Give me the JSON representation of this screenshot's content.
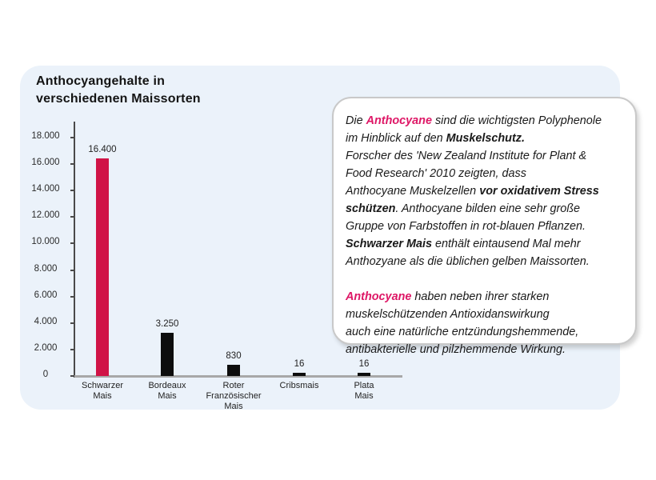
{
  "colors": {
    "page_bg": "#ffffff",
    "panel_bg": "#ebf2fa",
    "accent_pink": "#de1766",
    "bar_crimson": "#d01447",
    "bar_black": "#0d0d0d",
    "axis_line": "#4a4a4a",
    "baseline_gray": "#a8a8a8",
    "text_dark": "#1a1a1a",
    "infobox_border": "#c9c9c9"
  },
  "title": {
    "line1": "Anthocyangehalte in",
    "line2": "verschiedenen Maissorten"
  },
  "chart_data": {
    "type": "bar",
    "title": "Anthocyangehalte in verschiedenen Maissorten",
    "categories": [
      "Schwarzer Mais",
      "Bordeaux Mais",
      "Roter Französischer Mais",
      "Cribsmais",
      "Plata Mais"
    ],
    "category_lines": [
      [
        "Schwarzer",
        "Mais"
      ],
      [
        "Bordeaux",
        "Mais"
      ],
      [
        "Roter",
        "Französischer",
        "Mais"
      ],
      [
        "Cribsmais"
      ],
      [
        "Plata",
        "Mais"
      ]
    ],
    "values": [
      16400,
      3250,
      830,
      16,
      16
    ],
    "value_labels": [
      "16.400",
      "3.250",
      "830",
      "16",
      "16"
    ],
    "bar_colors": [
      "#d01447",
      "#0d0d0d",
      "#0d0d0d",
      "#0d0d0d",
      "#0d0d0d"
    ],
    "xlabel": "",
    "ylabel": "",
    "ylim": [
      0,
      18000
    ],
    "y_ticks": [
      18000,
      16000,
      14000,
      12000,
      10000,
      8000,
      6000,
      4000,
      2000,
      0
    ],
    "y_tick_labels": [
      "18.000",
      "16.000",
      "14.000",
      "12.000",
      "10.000",
      "8.000",
      "6.000",
      "4.000",
      "2.000",
      "0"
    ],
    "grid": false,
    "legend": false
  },
  "infobox": {
    "paragraphs": [
      [
        {
          "t": "Die ",
          "s": "n"
        },
        {
          "t": "Anthocyane",
          "s": "a"
        },
        {
          "t": " sind die wichtigsten Polyphenole",
          "s": "n"
        },
        {
          "br": true
        },
        {
          "t": "im Hinblick auf den ",
          "s": "n"
        },
        {
          "t": "Muskelschutz.",
          "s": "b"
        },
        {
          "br": true
        },
        {
          "t": "Forscher des 'New Zealand Institute for Plant &",
          "s": "n"
        },
        {
          "br": true
        },
        {
          "t": "Food Research' 2010 zeigten, dass",
          "s": "n"
        },
        {
          "br": true
        },
        {
          "t": "Anthocyane Muskelzellen ",
          "s": "n"
        },
        {
          "t": "vor oxidativem Stress",
          "s": "b"
        },
        {
          "br": true
        },
        {
          "t": "schützen",
          "s": "b"
        },
        {
          "t": ".  Anthocyane bilden eine sehr große",
          "s": "n"
        },
        {
          "br": true
        },
        {
          "t": "Gruppe von Farbstoffen in rot-blauen Pflanzen.",
          "s": "n"
        },
        {
          "br": true
        },
        {
          "t": "Schwarzer Mais",
          "s": "b"
        },
        {
          "t": "  enthält eintausend Mal mehr",
          "s": "n"
        },
        {
          "br": true
        },
        {
          "t": "Anthozyane als die üblichen gelben Maissorten.",
          "s": "n"
        }
      ],
      [
        {
          "t": "Anthocyane",
          "s": "a"
        },
        {
          "t": " haben neben ihrer starken",
          "s": "n"
        },
        {
          "br": true
        },
        {
          "t": "muskelschützenden Antioxidanswirkung",
          "s": "n"
        },
        {
          "br": true
        },
        {
          "t": "auch eine natürliche entzündungshemmende,",
          "s": "n"
        },
        {
          "br": true
        },
        {
          "t": "antibakterielle und pilzhemmende Wirkung.",
          "s": "n"
        }
      ]
    ]
  }
}
